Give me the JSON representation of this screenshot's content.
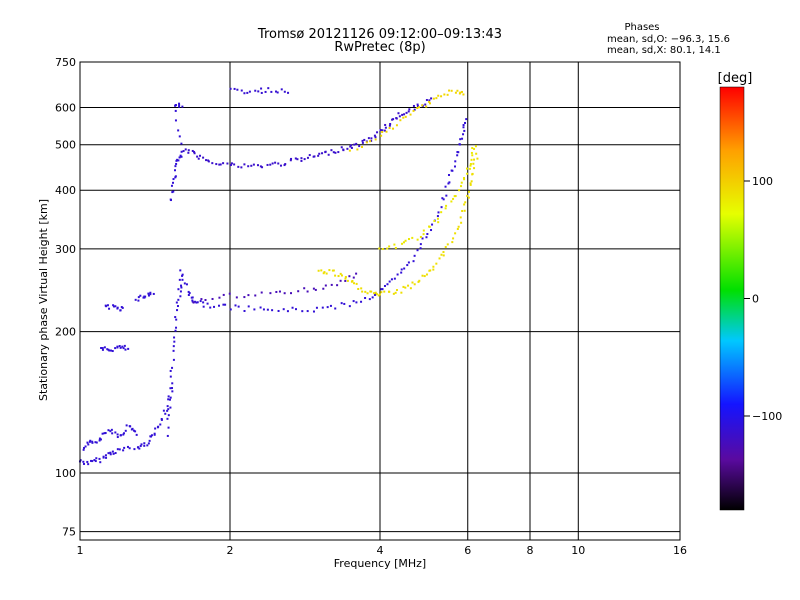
{
  "header": {
    "title_line1": "Tromsø 20121126 09:12:00–09:13:43",
    "title_line2": "RwPretec (8p)"
  },
  "stats": {
    "heading": "Phases",
    "o_mode": "mean, sd,O: −96.3, 15.6",
    "x_mode": "mean, sd,X: 80.1, 14.1"
  },
  "colorbar": {
    "unit_label": "[deg]",
    "ticks": [
      {
        "value": 100,
        "label": "100"
      },
      {
        "value": 0,
        "label": "0"
      },
      {
        "value": -100,
        "label": "−100"
      }
    ],
    "range": [
      -180,
      180
    ]
  },
  "chart_data": {
    "type": "scatter",
    "title": "Tromsø 20121126 09:12:00–09:13:43",
    "subtitle": "RwPretec (8p)",
    "xlabel": "Frequency [MHz]",
    "ylabel": "Stationary phase Virtual Height [km]",
    "x_scale": "log",
    "y_scale": "log",
    "xlim": [
      1,
      16
    ],
    "ylim": [
      72,
      750
    ],
    "x_ticks": [
      1,
      2,
      4,
      6,
      8,
      10,
      16
    ],
    "y_ticks": [
      75,
      100,
      200,
      300,
      400,
      500,
      600,
      750
    ],
    "grid": true,
    "color_encodes": "phase [deg]",
    "traces": [
      {
        "mode": "O",
        "phase_deg": -110,
        "points": [
          [
            1.0,
            106
          ],
          [
            1.05,
            105
          ],
          [
            1.1,
            107
          ],
          [
            1.15,
            110
          ],
          [
            1.2,
            112
          ],
          [
            1.3,
            113
          ],
          [
            1.35,
            115
          ],
          [
            1.4,
            120
          ],
          [
            1.45,
            128
          ],
          [
            1.5,
            138
          ],
          [
            1.53,
            150
          ]
        ]
      },
      {
        "mode": "O",
        "phase_deg": -110,
        "points": [
          [
            1.02,
            112
          ],
          [
            1.05,
            116
          ],
          [
            1.1,
            118
          ],
          [
            1.15,
            124
          ],
          [
            1.2,
            120
          ],
          [
            1.25,
            126
          ],
          [
            1.3,
            122
          ]
        ]
      },
      {
        "mode": "O",
        "phase_deg": -110,
        "points": [
          [
            1.1,
            183
          ],
          [
            1.15,
            183
          ],
          [
            1.2,
            185
          ],
          [
            1.25,
            184
          ]
        ]
      },
      {
        "mode": "O",
        "phase_deg": -110,
        "points": [
          [
            1.12,
            225
          ],
          [
            1.18,
            225
          ],
          [
            1.22,
            224
          ]
        ]
      },
      {
        "mode": "O",
        "phase_deg": -110,
        "points": [
          [
            1.3,
            235
          ],
          [
            1.35,
            238
          ],
          [
            1.4,
            242
          ]
        ]
      },
      {
        "mode": "O",
        "phase_deg": -110,
        "points": [
          [
            1.5,
            120
          ],
          [
            1.52,
            150
          ],
          [
            1.54,
            180
          ],
          [
            1.56,
            210
          ],
          [
            1.58,
            240
          ],
          [
            1.6,
            260
          ]
        ]
      },
      {
        "mode": "O",
        "phase_deg": -110,
        "points": [
          [
            1.52,
            380
          ],
          [
            1.55,
            420
          ],
          [
            1.57,
            460
          ],
          [
            1.6,
            480
          ],
          [
            1.55,
            610
          ],
          [
            1.6,
            600
          ]
        ]
      },
      {
        "mode": "O",
        "phase_deg": -110,
        "points": [
          [
            1.6,
            270
          ],
          [
            1.65,
            240
          ],
          [
            1.7,
            232
          ],
          [
            1.8,
            228
          ],
          [
            2.0,
            225
          ],
          [
            2.3,
            223
          ],
          [
            2.6,
            222
          ],
          [
            3.0,
            223
          ],
          [
            3.4,
            228
          ],
          [
            3.8,
            236
          ],
          [
            4.1,
            248
          ],
          [
            4.4,
            265
          ],
          [
            4.7,
            290
          ],
          [
            5.0,
            325
          ],
          [
            5.3,
            370
          ],
          [
            5.5,
            420
          ],
          [
            5.7,
            470
          ],
          [
            5.85,
            520
          ],
          [
            5.95,
            560
          ]
        ]
      },
      {
        "mode": "O",
        "phase_deg": -115,
        "points": [
          [
            1.62,
            490
          ],
          [
            1.7,
            475
          ],
          [
            1.8,
            465
          ],
          [
            1.95,
            455
          ],
          [
            2.1,
            450
          ],
          [
            2.3,
            450
          ],
          [
            2.5,
            455
          ],
          [
            2.7,
            462
          ],
          [
            2.9,
            470
          ],
          [
            3.1,
            478
          ],
          [
            3.3,
            488
          ],
          [
            3.5,
            495
          ],
          [
            3.7,
            505
          ],
          [
            3.9,
            520
          ],
          [
            4.1,
            545
          ],
          [
            4.3,
            570
          ],
          [
            4.5,
            590
          ],
          [
            4.8,
            605
          ],
          [
            5.1,
            625
          ]
        ]
      },
      {
        "mode": "O",
        "phase_deg": -112,
        "points": [
          [
            2.0,
            650
          ],
          [
            2.2,
            650
          ],
          [
            2.4,
            652
          ],
          [
            2.6,
            652
          ]
        ]
      },
      {
        "mode": "O",
        "phase_deg": -125,
        "points": [
          [
            1.7,
            232
          ],
          [
            2.0,
            238
          ],
          [
            2.4,
            240
          ],
          [
            2.8,
            245
          ],
          [
            3.2,
            250
          ],
          [
            3.6,
            265
          ]
        ]
      },
      {
        "mode": "X",
        "phase_deg": 90,
        "points": [
          [
            3.0,
            268
          ],
          [
            3.2,
            268
          ],
          [
            3.4,
            260
          ],
          [
            3.6,
            250
          ],
          [
            3.8,
            242
          ],
          [
            4.0,
            240
          ],
          [
            4.3,
            242
          ],
          [
            4.6,
            250
          ],
          [
            4.9,
            262
          ],
          [
            5.2,
            280
          ],
          [
            5.5,
            305
          ],
          [
            5.8,
            345
          ],
          [
            6.0,
            385
          ],
          [
            6.15,
            430
          ],
          [
            6.25,
            475
          ]
        ]
      },
      {
        "mode": "X",
        "phase_deg": 85,
        "points": [
          [
            4.0,
            300
          ],
          [
            4.4,
            305
          ],
          [
            4.8,
            320
          ],
          [
            5.2,
            345
          ],
          [
            5.6,
            380
          ],
          [
            5.9,
            420
          ],
          [
            6.1,
            460
          ],
          [
            6.2,
            500
          ]
        ]
      },
      {
        "mode": "X",
        "phase_deg": 95,
        "points": [
          [
            3.5,
            480
          ],
          [
            4.0,
            520
          ],
          [
            4.4,
            560
          ],
          [
            4.8,
            600
          ],
          [
            5.2,
            630
          ],
          [
            5.6,
            650
          ],
          [
            5.9,
            640
          ]
        ]
      }
    ]
  }
}
